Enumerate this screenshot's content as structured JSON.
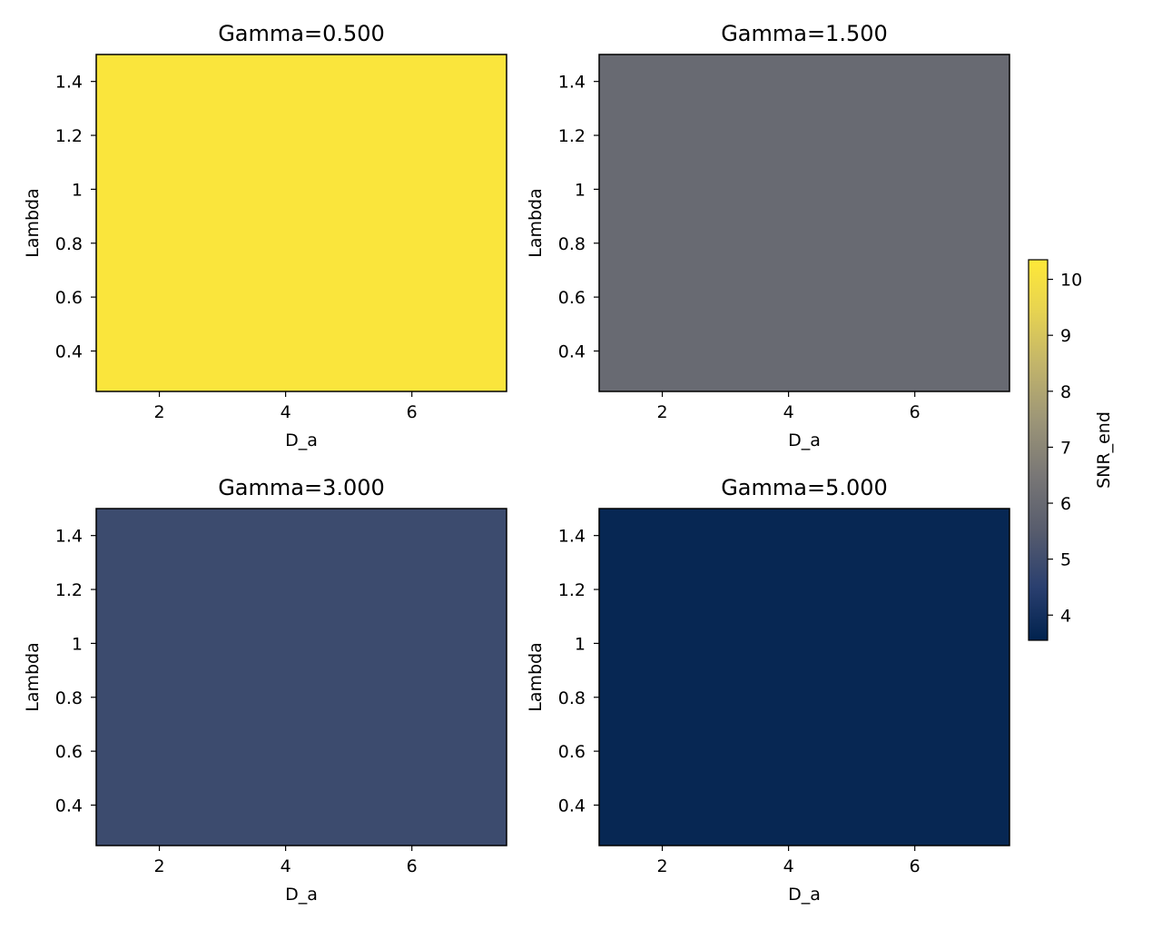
{
  "chart_data": {
    "type": "heatmap",
    "colormap": "cividis",
    "colorbar": {
      "label": "SNR_end",
      "range": [
        3.55,
        10.35
      ],
      "ticks": [
        4,
        5,
        6,
        7,
        8,
        9,
        10
      ],
      "stops": [
        {
          "value": 3.55,
          "color": "#00224e"
        },
        {
          "value": 4.5,
          "color": "#2a3f6f"
        },
        {
          "value": 5.5,
          "color": "#575c6d"
        },
        {
          "value": 6.5,
          "color": "#797776"
        },
        {
          "value": 7.5,
          "color": "#9d9677"
        },
        {
          "value": 8.5,
          "color": "#c3b56a"
        },
        {
          "value": 9.5,
          "color": "#e9d54f"
        },
        {
          "value": 10.35,
          "color": "#fee838"
        }
      ]
    },
    "panels": [
      {
        "title": "Gamma=0.500",
        "xlabel": "D_a",
        "ylabel": "Lambda",
        "xlim": [
          1,
          7.5
        ],
        "ylim": [
          0.25,
          1.5
        ],
        "xticks": [
          2,
          4,
          6
        ],
        "yticks": [
          0.4,
          0.6,
          0.8,
          1.0,
          1.2,
          1.4
        ],
        "value": 10.2
      },
      {
        "title": "Gamma=1.500",
        "xlabel": "D_a",
        "ylabel": "Lambda",
        "xlim": [
          1,
          7.5
        ],
        "ylim": [
          0.25,
          1.5
        ],
        "xticks": [
          2,
          4,
          6
        ],
        "yticks": [
          0.4,
          0.6,
          0.8,
          1.0,
          1.2,
          1.4
        ],
        "value": 6.0
      },
      {
        "title": "Gamma=3.000",
        "xlabel": "D_a",
        "ylabel": "Lambda",
        "xlim": [
          1,
          7.5
        ],
        "ylim": [
          0.25,
          1.5
        ],
        "xticks": [
          2,
          4,
          6
        ],
        "yticks": [
          0.4,
          0.6,
          0.8,
          1.0,
          1.2,
          1.4
        ],
        "value": 4.9
      },
      {
        "title": "Gamma=5.000",
        "xlabel": "D_a",
        "ylabel": "Lambda",
        "xlim": [
          1,
          7.5
        ],
        "ylim": [
          0.25,
          1.5
        ],
        "xticks": [
          2,
          4,
          6
        ],
        "yticks": [
          0.4,
          0.6,
          0.8,
          1.0,
          1.2,
          1.4
        ],
        "value": 3.7
      }
    ]
  }
}
